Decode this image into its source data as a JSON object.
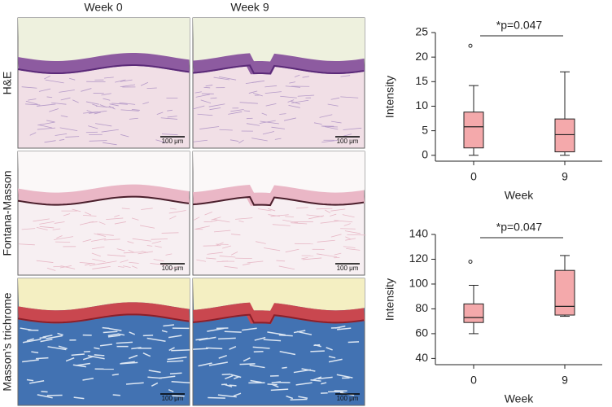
{
  "figure": {
    "columns": [
      "Week 0",
      "Week 9"
    ],
    "rows": [
      "H&E",
      "Fontana-Masson",
      "Masson’s trichrome"
    ],
    "scale_bar": "100 μm"
  },
  "chart_data": [
    {
      "type": "box",
      "ylabel": "Intensity",
      "xlabel": "Week",
      "annotation": "*p=0.047",
      "categories": [
        "0",
        "9"
      ],
      "color": "#f4a9ab",
      "ylim": [
        -1.2,
        25
      ],
      "yticks": [
        0,
        5,
        10,
        15,
        20,
        25
      ],
      "min": [
        0,
        0
      ],
      "q1": [
        1.5,
        0.7
      ],
      "median": [
        5.8,
        4.2
      ],
      "q3": [
        8.8,
        7.4
      ],
      "max": [
        14.2,
        17
      ],
      "outliers": [
        [
          22.3
        ],
        []
      ]
    },
    {
      "type": "box",
      "ylabel": "Intensity",
      "xlabel": "Week",
      "annotation": "*p=0.047",
      "categories": [
        "0",
        "9"
      ],
      "color": "#f4a9ab",
      "ylim": [
        35,
        140
      ],
      "yticks": [
        40,
        60,
        80,
        100,
        120,
        140
      ],
      "min": [
        60,
        74
      ],
      "q1": [
        69,
        75
      ],
      "median": [
        73,
        82
      ],
      "q3": [
        84,
        111
      ],
      "max": [
        99,
        123
      ],
      "outliers": [
        [
          118
        ],
        []
      ]
    }
  ]
}
